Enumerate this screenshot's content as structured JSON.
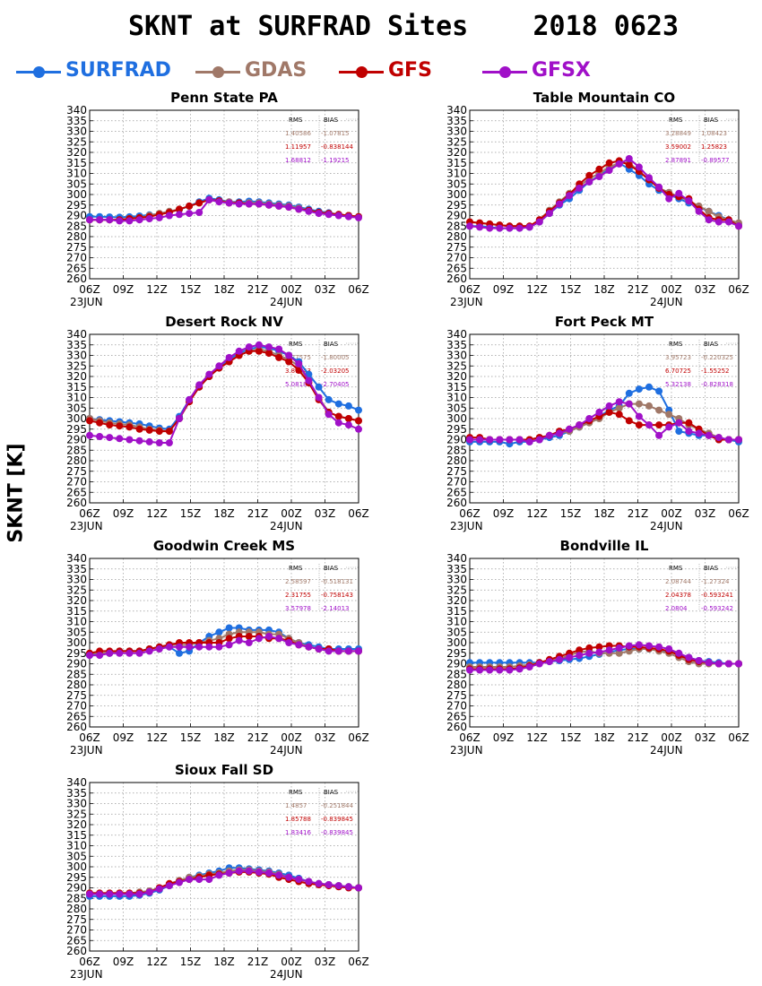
{
  "title": "SKNT at SURFRAD Sites    2018 0623",
  "y_axis_title": "SKNT [K]",
  "legend": [
    {
      "name": "SURFRAD",
      "color": "#1f6fe0"
    },
    {
      "name": "GDAS",
      "color": "#a07868"
    },
    {
      "name": "GFS",
      "color": "#c00000"
    },
    {
      "name": "GFSX",
      "color": "#a010c8"
    }
  ],
  "chart_data": {
    "type": "line",
    "x_ticks": [
      "06Z",
      "09Z",
      "12Z",
      "15Z",
      "18Z",
      "21Z",
      "00Z",
      "03Z",
      "06Z"
    ],
    "x_date_labels": [
      "23JUN",
      "24JUN"
    ],
    "ylim": [
      260,
      340
    ],
    "y_ticks": [
      260,
      265,
      270,
      275,
      280,
      285,
      290,
      295,
      300,
      305,
      310,
      315,
      320,
      325,
      330,
      335,
      340
    ],
    "grid": true,
    "stats_header": [
      "RMS",
      "BIAS"
    ],
    "panels": [
      {
        "site": "Penn State PA",
        "stats": [
          {
            "model": "GDAS",
            "rms": "1.40586",
            "bias": "-1.07815"
          },
          {
            "model": "GFS",
            "rms": "1.11957",
            "bias": "-0.838144"
          },
          {
            "model": "GFSX",
            "rms": "1.68812",
            "bias": "-1.19215"
          }
        ],
        "series": {
          "SURFRAD": [
            289.5,
            289.5,
            289.3,
            289.2,
            289.4,
            289.8,
            290.3,
            290.8,
            291.8,
            292.8,
            294.5,
            296.5,
            298.2,
            297.5,
            296.5,
            296.5,
            296.8,
            296.5,
            296.0,
            295.5,
            295.0,
            294.0,
            293.0,
            292.0,
            291.3,
            290.5,
            290.0,
            289.5
          ],
          "GDAS": [
            288.0,
            288.0,
            288.0,
            288.0,
            288.5,
            289.0,
            290.0,
            291.0,
            292.0,
            293.0,
            294.5,
            296.0,
            297.5,
            297.0,
            296.5,
            296.0,
            296.0,
            296.0,
            295.5,
            295.0,
            294.5,
            293.5,
            292.5,
            291.5,
            291.0,
            290.5,
            290.0,
            289.5
          ],
          "GFS": [
            288.0,
            288.0,
            288.0,
            288.0,
            288.5,
            289.0,
            289.5,
            290.5,
            291.5,
            293.0,
            294.5,
            296.0,
            297.5,
            297.0,
            296.0,
            296.0,
            295.5,
            295.5,
            295.0,
            294.5,
            294.0,
            293.0,
            292.5,
            291.5,
            291.0,
            290.5,
            290.0,
            289.5
          ],
          "GFSX": [
            288.0,
            288.0,
            288.0,
            287.5,
            287.5,
            288.0,
            288.5,
            289.0,
            290.0,
            290.5,
            291.0,
            291.5,
            297.5,
            296.5,
            296.0,
            295.5,
            295.5,
            295.5,
            295.0,
            294.5,
            294.0,
            293.0,
            292.0,
            291.0,
            290.5,
            290.0,
            289.5,
            289.0
          ]
        }
      },
      {
        "site": "Table Mountain CO",
        "stats": [
          {
            "model": "GDAS",
            "rms": "3.28849",
            "bias": "1.08423"
          },
          {
            "model": "GFS",
            "rms": "3.59002",
            "bias": "1.25823"
          },
          {
            "model": "GFSX",
            "rms": "2.87891",
            "bias": "-0.89577"
          }
        ],
        "series": {
          "SURFRAD": [
            285.0,
            285.0,
            284.5,
            284.0,
            284.0,
            284.0,
            284.5,
            287.0,
            291.0,
            295.0,
            298.0,
            302.0,
            306.0,
            309.0,
            312.0,
            315.0,
            312.0,
            309.0,
            305.0,
            302.0,
            300.0,
            298.0,
            296.0,
            294.0,
            292.0,
            290.0,
            288.0,
            286.0
          ],
          "GDAS": [
            287.0,
            286.5,
            286.0,
            285.5,
            285.0,
            285.0,
            285.0,
            288.0,
            292.5,
            296.5,
            300.5,
            304.0,
            307.5,
            310.0,
            313.0,
            315.0,
            315.0,
            311.0,
            307.0,
            303.0,
            301.0,
            299.0,
            297.0,
            294.5,
            292.0,
            289.5,
            288.0,
            286.5
          ],
          "GFS": [
            287.0,
            286.5,
            286.0,
            285.5,
            285.0,
            285.0,
            285.0,
            288.0,
            292.0,
            296.0,
            300.0,
            305.0,
            309.0,
            312.0,
            315.0,
            316.0,
            314.0,
            311.0,
            307.0,
            303.0,
            300.0,
            299.0,
            298.0,
            293.0,
            289.0,
            288.0,
            288.0,
            285.0
          ],
          "GFSX": [
            285.0,
            284.5,
            284.0,
            284.0,
            284.0,
            284.0,
            284.5,
            287.0,
            291.0,
            295.5,
            299.5,
            303.0,
            306.0,
            308.5,
            311.5,
            314.5,
            317.0,
            313.0,
            308.0,
            303.5,
            298.0,
            300.5,
            297.0,
            292.0,
            288.0,
            287.0,
            287.0,
            285.0
          ]
        }
      },
      {
        "site": "Desert Rock NV",
        "stats": [
          {
            "model": "GDAS",
            "rms": "3.27575",
            "bias": "-1.80005"
          },
          {
            "model": "GFS",
            "rms": "3.81943",
            "bias": "-2.03205"
          },
          {
            "model": "GFSX",
            "rms": "5.08185",
            "bias": "-2.70405"
          }
        ],
        "series": {
          "SURFRAD": [
            300.0,
            299.5,
            299.0,
            298.5,
            298.0,
            297.5,
            296.5,
            295.5,
            295.0,
            301.0,
            309.0,
            315.0,
            320.0,
            324.0,
            328.0,
            331.0,
            333.0,
            334.0,
            333.5,
            332.0,
            330.0,
            327.0,
            321.0,
            315.0,
            309.0,
            307.0,
            306.0,
            304.0
          ],
          "GDAS": [
            300.0,
            299.0,
            298.0,
            297.5,
            297.0,
            296.0,
            295.0,
            294.5,
            294.0,
            300.0,
            308.0,
            315.0,
            320.0,
            324.0,
            327.0,
            330.0,
            332.0,
            333.0,
            332.0,
            330.0,
            328.0,
            325.0,
            318.0,
            310.0,
            303.0,
            301.0,
            300.0,
            299.0
          ],
          "GFS": [
            299.0,
            298.0,
            297.0,
            296.5,
            296.0,
            295.0,
            294.5,
            294.0,
            294.0,
            300.0,
            308.0,
            315.0,
            320.0,
            324.0,
            327.0,
            330.0,
            332.0,
            332.0,
            331.0,
            329.0,
            327.0,
            323.0,
            317.0,
            309.0,
            303.0,
            301.0,
            300.0,
            299.0
          ],
          "GFSX": [
            292.0,
            291.5,
            291.0,
            290.5,
            290.0,
            289.5,
            289.0,
            288.5,
            288.5,
            300.0,
            309.0,
            316.0,
            321.0,
            325.0,
            329.0,
            332.0,
            334.0,
            335.0,
            334.0,
            333.0,
            330.0,
            326.0,
            318.0,
            310.0,
            302.0,
            298.0,
            297.0,
            295.0
          ]
        }
      },
      {
        "site": "Fort Peck MT",
        "stats": [
          {
            "model": "GDAS",
            "rms": "3.95723",
            "bias": "-0.220325"
          },
          {
            "model": "GFS",
            "rms": "6.70725",
            "bias": "-1.55252"
          },
          {
            "model": "GFSX",
            "rms": "5.32138",
            "bias": "-0.828318"
          }
        ],
        "series": {
          "SURFRAD": [
            289.0,
            289.0,
            289.0,
            289.0,
            288.0,
            289.0,
            289.0,
            290.0,
            291.0,
            292.0,
            294.0,
            296.0,
            299.0,
            301.0,
            304.0,
            306.0,
            312.0,
            314.0,
            315.0,
            313.0,
            304.0,
            294.0,
            293.0,
            292.0,
            292.0,
            290.0,
            290.0,
            289.0
          ],
          "GDAS": [
            290.0,
            290.0,
            290.0,
            290.0,
            290.0,
            290.0,
            290.0,
            291.0,
            292.0,
            293.0,
            294.0,
            296.0,
            298.0,
            300.0,
            303.0,
            305.0,
            307.0,
            307.0,
            306.0,
            304.0,
            302.0,
            300.0,
            297.0,
            295.0,
            293.0,
            291.0,
            290.0,
            290.0
          ],
          "GFS": [
            291.0,
            291.0,
            290.0,
            290.0,
            290.0,
            290.0,
            290.0,
            291.0,
            292.0,
            294.0,
            295.0,
            297.0,
            299.0,
            301.0,
            303.0,
            302.0,
            299.0,
            297.0,
            297.0,
            297.0,
            297.0,
            298.0,
            298.0,
            295.0,
            292.0,
            290.0,
            290.0,
            290.0
          ],
          "GFSX": [
            290.0,
            290.0,
            290.0,
            290.0,
            290.0,
            290.0,
            289.0,
            290.0,
            292.0,
            293.0,
            295.0,
            297.0,
            300.0,
            303.0,
            306.0,
            308.0,
            307.0,
            301.0,
            297.0,
            292.0,
            296.0,
            298.0,
            294.0,
            293.0,
            292.0,
            291.0,
            290.0,
            290.0
          ]
        }
      },
      {
        "site": "Goodwin Creek MS",
        "stats": [
          {
            "model": "GDAS",
            "rms": "2.58597",
            "bias": "-0.518131"
          },
          {
            "model": "GFS",
            "rms": "2.31755",
            "bias": "-0.758143"
          },
          {
            "model": "GFSX",
            "rms": "3.57978",
            "bias": "-2.14013"
          }
        ],
        "series": {
          "SURFRAD": [
            294.0,
            295.0,
            295.0,
            296.0,
            296.0,
            296.0,
            297.0,
            298.0,
            298.0,
            295.0,
            296.0,
            300.0,
            303.0,
            305.0,
            307.0,
            307.0,
            306.0,
            306.0,
            306.0,
            305.0,
            302.0,
            300.0,
            299.0,
            298.0,
            297.0,
            297.0,
            297.0,
            297.0
          ],
          "GDAS": [
            295.0,
            295.0,
            295.0,
            296.0,
            296.0,
            296.0,
            297.0,
            298.0,
            299.0,
            299.0,
            299.0,
            300.0,
            301.0,
            302.0,
            304.0,
            305.0,
            305.0,
            305.0,
            304.0,
            304.0,
            302.0,
            300.0,
            298.0,
            297.0,
            297.0,
            296.0,
            296.0,
            296.0
          ],
          "GFS": [
            295.0,
            296.0,
            296.0,
            296.0,
            296.0,
            296.0,
            297.0,
            298.0,
            299.0,
            300.0,
            300.0,
            300.0,
            300.0,
            300.0,
            302.0,
            303.0,
            303.0,
            303.0,
            302.0,
            302.0,
            301.0,
            299.0,
            298.0,
            297.0,
            297.0,
            296.0,
            296.0,
            296.0
          ],
          "GFSX": [
            294.0,
            294.0,
            295.0,
            295.0,
            295.0,
            295.0,
            296.0,
            297.0,
            298.0,
            298.0,
            298.0,
            298.0,
            298.0,
            298.0,
            299.0,
            301.0,
            300.0,
            302.0,
            303.0,
            302.0,
            300.0,
            299.0,
            298.0,
            297.0,
            296.0,
            296.0,
            296.0,
            296.0
          ]
        }
      },
      {
        "site": "Bondville IL",
        "stats": [
          {
            "model": "GDAS",
            "rms": "2.08744",
            "bias": "-1.27324"
          },
          {
            "model": "GFS",
            "rms": "2.04378",
            "bias": "-0.593241"
          },
          {
            "model": "GFSX",
            "rms": "2.0804",
            "bias": "-0.593242"
          }
        ],
        "series": {
          "SURFRAD": [
            290.5,
            290.5,
            290.5,
            290.5,
            290.5,
            290.5,
            290.5,
            290.5,
            291.0,
            291.5,
            292.0,
            292.5,
            293.5,
            294.5,
            295.5,
            296.5,
            297.0,
            297.0,
            297.0,
            296.5,
            296.0,
            294.5,
            293.0,
            291.5,
            291.0,
            290.5,
            290.0,
            290.0
          ],
          "GDAS": [
            288.5,
            288.5,
            288.5,
            288.5,
            288.5,
            289.0,
            289.5,
            290.5,
            291.5,
            292.5,
            294.0,
            295.5,
            296.0,
            295.0,
            295.0,
            295.0,
            296.0,
            297.0,
            297.0,
            296.0,
            295.0,
            293.0,
            291.0,
            290.0,
            290.0,
            290.0,
            290.0,
            290.0
          ],
          "GFS": [
            287.5,
            287.5,
            287.5,
            287.5,
            287.5,
            288.0,
            289.0,
            290.5,
            292.0,
            293.5,
            295.0,
            296.5,
            297.5,
            298.0,
            298.5,
            298.5,
            298.0,
            298.0,
            297.5,
            297.0,
            296.0,
            294.0,
            292.0,
            291.0,
            290.5,
            290.0,
            290.0,
            290.0
          ],
          "GFSX": [
            287.0,
            287.0,
            287.0,
            287.0,
            287.0,
            287.5,
            288.5,
            290.0,
            291.0,
            292.0,
            293.0,
            294.0,
            295.0,
            295.5,
            296.5,
            297.5,
            298.5,
            299.0,
            298.5,
            298.0,
            297.0,
            295.0,
            293.0,
            291.5,
            290.5,
            290.0,
            290.0,
            290.0
          ]
        }
      },
      {
        "site": "Sioux Fall SD",
        "stats": [
          {
            "model": "GDAS",
            "rms": "1.4857",
            "bias": "-0.251844"
          },
          {
            "model": "GFS",
            "rms": "1.85788",
            "bias": "-0.839845"
          },
          {
            "model": "GFSX",
            "rms": "1.83416",
            "bias": "-0.839845"
          }
        ],
        "series": {
          "SURFRAD": [
            286.0,
            286.0,
            286.0,
            286.0,
            286.0,
            286.5,
            287.5,
            289.0,
            291.0,
            293.0,
            295.0,
            296.0,
            297.0,
            298.0,
            299.5,
            299.5,
            299.0,
            298.5,
            298.0,
            297.0,
            296.0,
            294.5,
            293.0,
            292.0,
            291.5,
            291.0,
            290.5,
            290.0
          ],
          "GDAS": [
            287.5,
            287.5,
            287.5,
            287.5,
            287.5,
            288.0,
            288.5,
            290.0,
            292.0,
            293.5,
            295.0,
            295.5,
            296.5,
            297.0,
            298.0,
            298.5,
            298.5,
            298.0,
            297.5,
            296.5,
            295.0,
            294.0,
            293.0,
            292.0,
            291.5,
            291.0,
            290.5,
            290.0
          ],
          "GFS": [
            287.5,
            287.5,
            287.5,
            287.5,
            287.5,
            287.5,
            288.0,
            290.0,
            292.0,
            293.0,
            294.0,
            295.0,
            296.0,
            296.5,
            297.0,
            297.5,
            297.5,
            297.0,
            296.5,
            295.0,
            294.0,
            293.0,
            292.0,
            291.5,
            291.0,
            290.5,
            290.0,
            290.0
          ],
          "GFSX": [
            287.0,
            287.0,
            287.0,
            287.0,
            287.0,
            287.0,
            288.0,
            289.5,
            291.0,
            292.5,
            294.0,
            294.0,
            294.0,
            296.0,
            297.0,
            298.0,
            298.0,
            297.5,
            297.0,
            296.0,
            295.0,
            294.0,
            293.0,
            292.0,
            291.5,
            291.0,
            290.5,
            290.0
          ]
        }
      }
    ]
  }
}
